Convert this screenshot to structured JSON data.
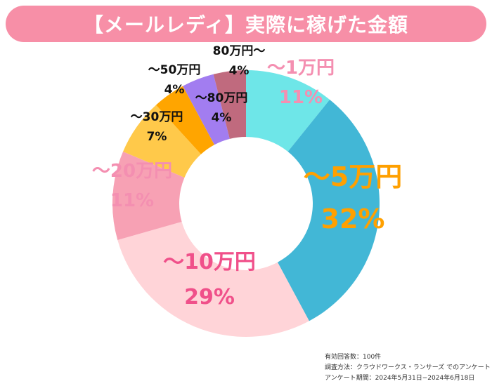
{
  "title": "【メールレディ】実際に稼げた金額",
  "chart_data": {
    "type": "pie",
    "variant": "donut",
    "slices": [
      {
        "label": "〜1万円",
        "value": 11,
        "display": "11%",
        "color": "#6ee6e8",
        "label_color": "#f48fb1"
      },
      {
        "label": "〜5万円",
        "value": 32,
        "display": "32%",
        "color": "#42b7d6",
        "label_color": "#ffa000"
      },
      {
        "label": "〜10万円",
        "value": 29,
        "display": "29%",
        "color": "#ffd4d8",
        "label_color": "#f0508a"
      },
      {
        "label": "〜20万円",
        "value": 11,
        "display": "11%",
        "color": "#f7a1b4",
        "label_color": "#f48fb1"
      },
      {
        "label": "〜30万円",
        "value": 7,
        "display": "7%",
        "color": "#ffc94a",
        "label_color": "#111111"
      },
      {
        "label": "〜50万円",
        "value": 4,
        "display": "4%",
        "color": "#ffa500",
        "label_color": "#111111"
      },
      {
        "label": "〜80万円",
        "value": 4,
        "display": "4%",
        "color": "#a27df0",
        "label_color": "#111111"
      },
      {
        "label": "80万円〜",
        "value": 4,
        "display": "4%",
        "color": "#c06a7e",
        "label_color": "#111111"
      }
    ],
    "start_angle_deg": 0,
    "direction": "clockwise"
  },
  "notes": {
    "respondents": "有効回答数：100件",
    "method": "調査方法：クラウドワークス・ランサーズ でのアンケート",
    "period": "アンケート期間：2024年5月31日−2024年6月18日"
  }
}
